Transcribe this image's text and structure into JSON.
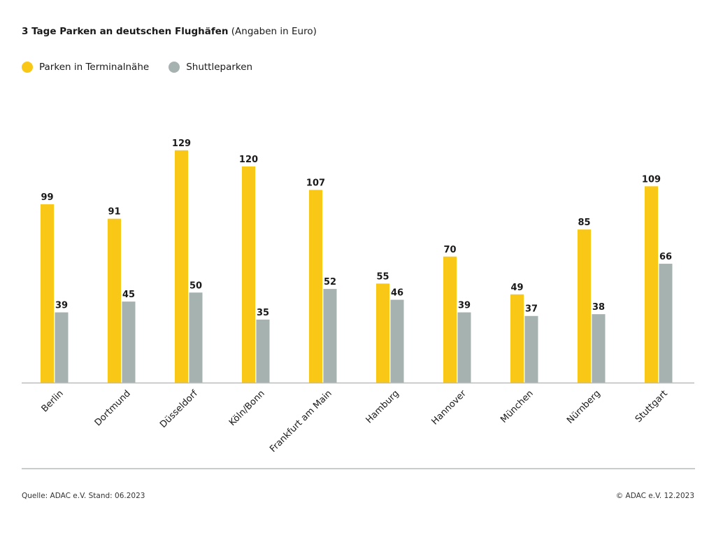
{
  "header": {
    "title_bold": "3 Tage Parken an deutschen Flughäfen",
    "title_normal": "(Angaben in Euro)"
  },
  "footer": {
    "source": "Quelle: ADAC e.V. Stand: 06.2023",
    "copyright": "© ADAC e.V. 12.2023"
  },
  "colors": {
    "terminal": "#f9c716",
    "shuttle": "#a6b2b0",
    "axis": "#b9bdbb"
  },
  "chart_data": {
    "type": "bar",
    "title": "3 Tage Parken an deutschen Flughäfen (Angaben in Euro)",
    "xlabel": "",
    "ylabel": "",
    "ylim": [
      0,
      140
    ],
    "grid": false,
    "legend_position": "top-left",
    "categories": [
      "Berlin",
      "Dortmund",
      "Düsseldorf",
      "Köln/Bonn",
      "Frankfurt am Main",
      "Hamburg",
      "Hannover",
      "München",
      "Nürnberg",
      "Stuttgart"
    ],
    "series": [
      {
        "name": "Parken in Terminalnähe",
        "values": [
          99,
          91,
          129,
          120,
          107,
          55,
          70,
          49,
          85,
          109
        ]
      },
      {
        "name": "Shuttleparken",
        "values": [
          39,
          45,
          50,
          35,
          52,
          46,
          39,
          37,
          38,
          66
        ]
      }
    ]
  }
}
